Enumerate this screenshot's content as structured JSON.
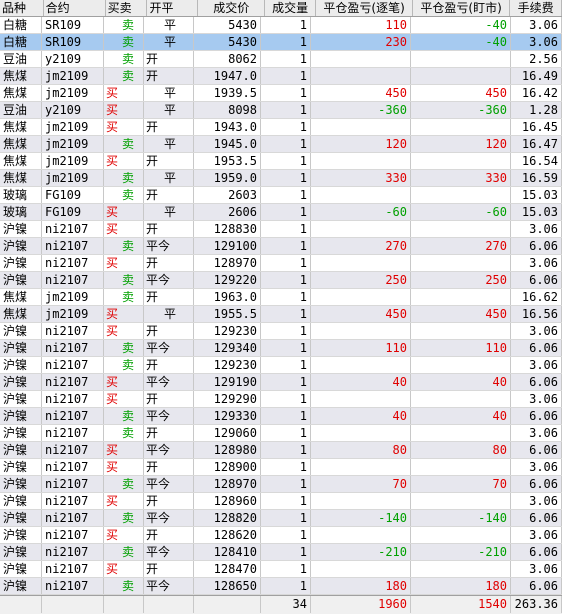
{
  "headers": [
    "品种",
    "合约",
    "买卖",
    "开平",
    "成交价",
    "成交量",
    "平仓盈亏(逐笔)",
    "平仓盈亏(盯市)",
    "手续费"
  ],
  "rows": [
    {
      "name": "白糖",
      "contract": "SR109",
      "side": "卖",
      "oc": "平",
      "price": "5430",
      "qty": "1",
      "pnl1": "110",
      "pnl2": "-40",
      "fee": "3.06",
      "sel": false
    },
    {
      "name": "白糖",
      "contract": "SR109",
      "side": "卖",
      "oc": "平",
      "price": "5430",
      "qty": "1",
      "pnl1": "230",
      "pnl2": "-40",
      "fee": "3.06",
      "sel": true
    },
    {
      "name": "豆油",
      "contract": "y2109",
      "side": "卖",
      "oc": "开",
      "price": "8062",
      "qty": "1",
      "pnl1": "",
      "pnl2": "",
      "fee": "2.56",
      "sel": false
    },
    {
      "name": "焦煤",
      "contract": "jm2109",
      "side": "卖",
      "oc": "开",
      "price": "1947.0",
      "qty": "1",
      "pnl1": "",
      "pnl2": "",
      "fee": "16.49",
      "sel": false
    },
    {
      "name": "焦煤",
      "contract": "jm2109",
      "side": "买",
      "oc": "平",
      "price": "1939.5",
      "qty": "1",
      "pnl1": "450",
      "pnl2": "450",
      "fee": "16.42",
      "sel": false
    },
    {
      "name": "豆油",
      "contract": "y2109",
      "side": "买",
      "oc": "平",
      "price": "8098",
      "qty": "1",
      "pnl1": "-360",
      "pnl2": "-360",
      "fee": "1.28",
      "sel": false
    },
    {
      "name": "焦煤",
      "contract": "jm2109",
      "side": "买",
      "oc": "开",
      "price": "1943.0",
      "qty": "1",
      "pnl1": "",
      "pnl2": "",
      "fee": "16.45",
      "sel": false
    },
    {
      "name": "焦煤",
      "contract": "jm2109",
      "side": "卖",
      "oc": "平",
      "price": "1945.0",
      "qty": "1",
      "pnl1": "120",
      "pnl2": "120",
      "fee": "16.47",
      "sel": false
    },
    {
      "name": "焦煤",
      "contract": "jm2109",
      "side": "买",
      "oc": "开",
      "price": "1953.5",
      "qty": "1",
      "pnl1": "",
      "pnl2": "",
      "fee": "16.54",
      "sel": false
    },
    {
      "name": "焦煤",
      "contract": "jm2109",
      "side": "卖",
      "oc": "平",
      "price": "1959.0",
      "qty": "1",
      "pnl1": "330",
      "pnl2": "330",
      "fee": "16.59",
      "sel": false
    },
    {
      "name": "玻璃",
      "contract": "FG109",
      "side": "卖",
      "oc": "开",
      "price": "2603",
      "qty": "1",
      "pnl1": "",
      "pnl2": "",
      "fee": "15.03",
      "sel": false
    },
    {
      "name": "玻璃",
      "contract": "FG109",
      "side": "买",
      "oc": "平",
      "price": "2606",
      "qty": "1",
      "pnl1": "-60",
      "pnl2": "-60",
      "fee": "15.03",
      "sel": false
    },
    {
      "name": "沪镍",
      "contract": "ni2107",
      "side": "买",
      "oc": "开",
      "price": "128830",
      "qty": "1",
      "pnl1": "",
      "pnl2": "",
      "fee": "3.06",
      "sel": false
    },
    {
      "name": "沪镍",
      "contract": "ni2107",
      "side": "卖",
      "oc": "平今",
      "price": "129100",
      "qty": "1",
      "pnl1": "270",
      "pnl2": "270",
      "fee": "6.06",
      "sel": false
    },
    {
      "name": "沪镍",
      "contract": "ni2107",
      "side": "买",
      "oc": "开",
      "price": "128970",
      "qty": "1",
      "pnl1": "",
      "pnl2": "",
      "fee": "3.06",
      "sel": false
    },
    {
      "name": "沪镍",
      "contract": "ni2107",
      "side": "卖",
      "oc": "平今",
      "price": "129220",
      "qty": "1",
      "pnl1": "250",
      "pnl2": "250",
      "fee": "6.06",
      "sel": false
    },
    {
      "name": "焦煤",
      "contract": "jm2109",
      "side": "卖",
      "oc": "开",
      "price": "1963.0",
      "qty": "1",
      "pnl1": "",
      "pnl2": "",
      "fee": "16.62",
      "sel": false
    },
    {
      "name": "焦煤",
      "contract": "jm2109",
      "side": "买",
      "oc": "平",
      "price": "1955.5",
      "qty": "1",
      "pnl1": "450",
      "pnl2": "450",
      "fee": "16.56",
      "sel": false
    },
    {
      "name": "沪镍",
      "contract": "ni2107",
      "side": "买",
      "oc": "开",
      "price": "129230",
      "qty": "1",
      "pnl1": "",
      "pnl2": "",
      "fee": "3.06",
      "sel": false
    },
    {
      "name": "沪镍",
      "contract": "ni2107",
      "side": "卖",
      "oc": "平今",
      "price": "129340",
      "qty": "1",
      "pnl1": "110",
      "pnl2": "110",
      "fee": "6.06",
      "sel": false
    },
    {
      "name": "沪镍",
      "contract": "ni2107",
      "side": "卖",
      "oc": "开",
      "price": "129230",
      "qty": "1",
      "pnl1": "",
      "pnl2": "",
      "fee": "3.06",
      "sel": false
    },
    {
      "name": "沪镍",
      "contract": "ni2107",
      "side": "买",
      "oc": "平今",
      "price": "129190",
      "qty": "1",
      "pnl1": "40",
      "pnl2": "40",
      "fee": "6.06",
      "sel": false
    },
    {
      "name": "沪镍",
      "contract": "ni2107",
      "side": "买",
      "oc": "开",
      "price": "129290",
      "qty": "1",
      "pnl1": "",
      "pnl2": "",
      "fee": "3.06",
      "sel": false
    },
    {
      "name": "沪镍",
      "contract": "ni2107",
      "side": "卖",
      "oc": "平今",
      "price": "129330",
      "qty": "1",
      "pnl1": "40",
      "pnl2": "40",
      "fee": "6.06",
      "sel": false
    },
    {
      "name": "沪镍",
      "contract": "ni2107",
      "side": "卖",
      "oc": "开",
      "price": "129060",
      "qty": "1",
      "pnl1": "",
      "pnl2": "",
      "fee": "3.06",
      "sel": false
    },
    {
      "name": "沪镍",
      "contract": "ni2107",
      "side": "买",
      "oc": "平今",
      "price": "128980",
      "qty": "1",
      "pnl1": "80",
      "pnl2": "80",
      "fee": "6.06",
      "sel": false
    },
    {
      "name": "沪镍",
      "contract": "ni2107",
      "side": "买",
      "oc": "开",
      "price": "128900",
      "qty": "1",
      "pnl1": "",
      "pnl2": "",
      "fee": "3.06",
      "sel": false
    },
    {
      "name": "沪镍",
      "contract": "ni2107",
      "side": "卖",
      "oc": "平今",
      "price": "128970",
      "qty": "1",
      "pnl1": "70",
      "pnl2": "70",
      "fee": "6.06",
      "sel": false
    },
    {
      "name": "沪镍",
      "contract": "ni2107",
      "side": "买",
      "oc": "开",
      "price": "128960",
      "qty": "1",
      "pnl1": "",
      "pnl2": "",
      "fee": "3.06",
      "sel": false
    },
    {
      "name": "沪镍",
      "contract": "ni2107",
      "side": "卖",
      "oc": "平今",
      "price": "128820",
      "qty": "1",
      "pnl1": "-140",
      "pnl2": "-140",
      "fee": "6.06",
      "sel": false
    },
    {
      "name": "沪镍",
      "contract": "ni2107",
      "side": "买",
      "oc": "开",
      "price": "128620",
      "qty": "1",
      "pnl1": "",
      "pnl2": "",
      "fee": "3.06",
      "sel": false
    },
    {
      "name": "沪镍",
      "contract": "ni2107",
      "side": "卖",
      "oc": "平今",
      "price": "128410",
      "qty": "1",
      "pnl1": "-210",
      "pnl2": "-210",
      "fee": "6.06",
      "sel": false
    },
    {
      "name": "沪镍",
      "contract": "ni2107",
      "side": "买",
      "oc": "开",
      "price": "128470",
      "qty": "1",
      "pnl1": "",
      "pnl2": "",
      "fee": "3.06",
      "sel": false
    },
    {
      "name": "沪镍",
      "contract": "ni2107",
      "side": "卖",
      "oc": "平今",
      "price": "128650",
      "qty": "1",
      "pnl1": "180",
      "pnl2": "180",
      "fee": "6.06",
      "sel": false
    }
  ],
  "footer": {
    "qty": "34",
    "pnl1": "1960",
    "pnl2": "1540",
    "fee": "263.36"
  },
  "colors": {
    "buy": "#e00000",
    "sell": "#00a000",
    "selected": "#a6caf0"
  }
}
